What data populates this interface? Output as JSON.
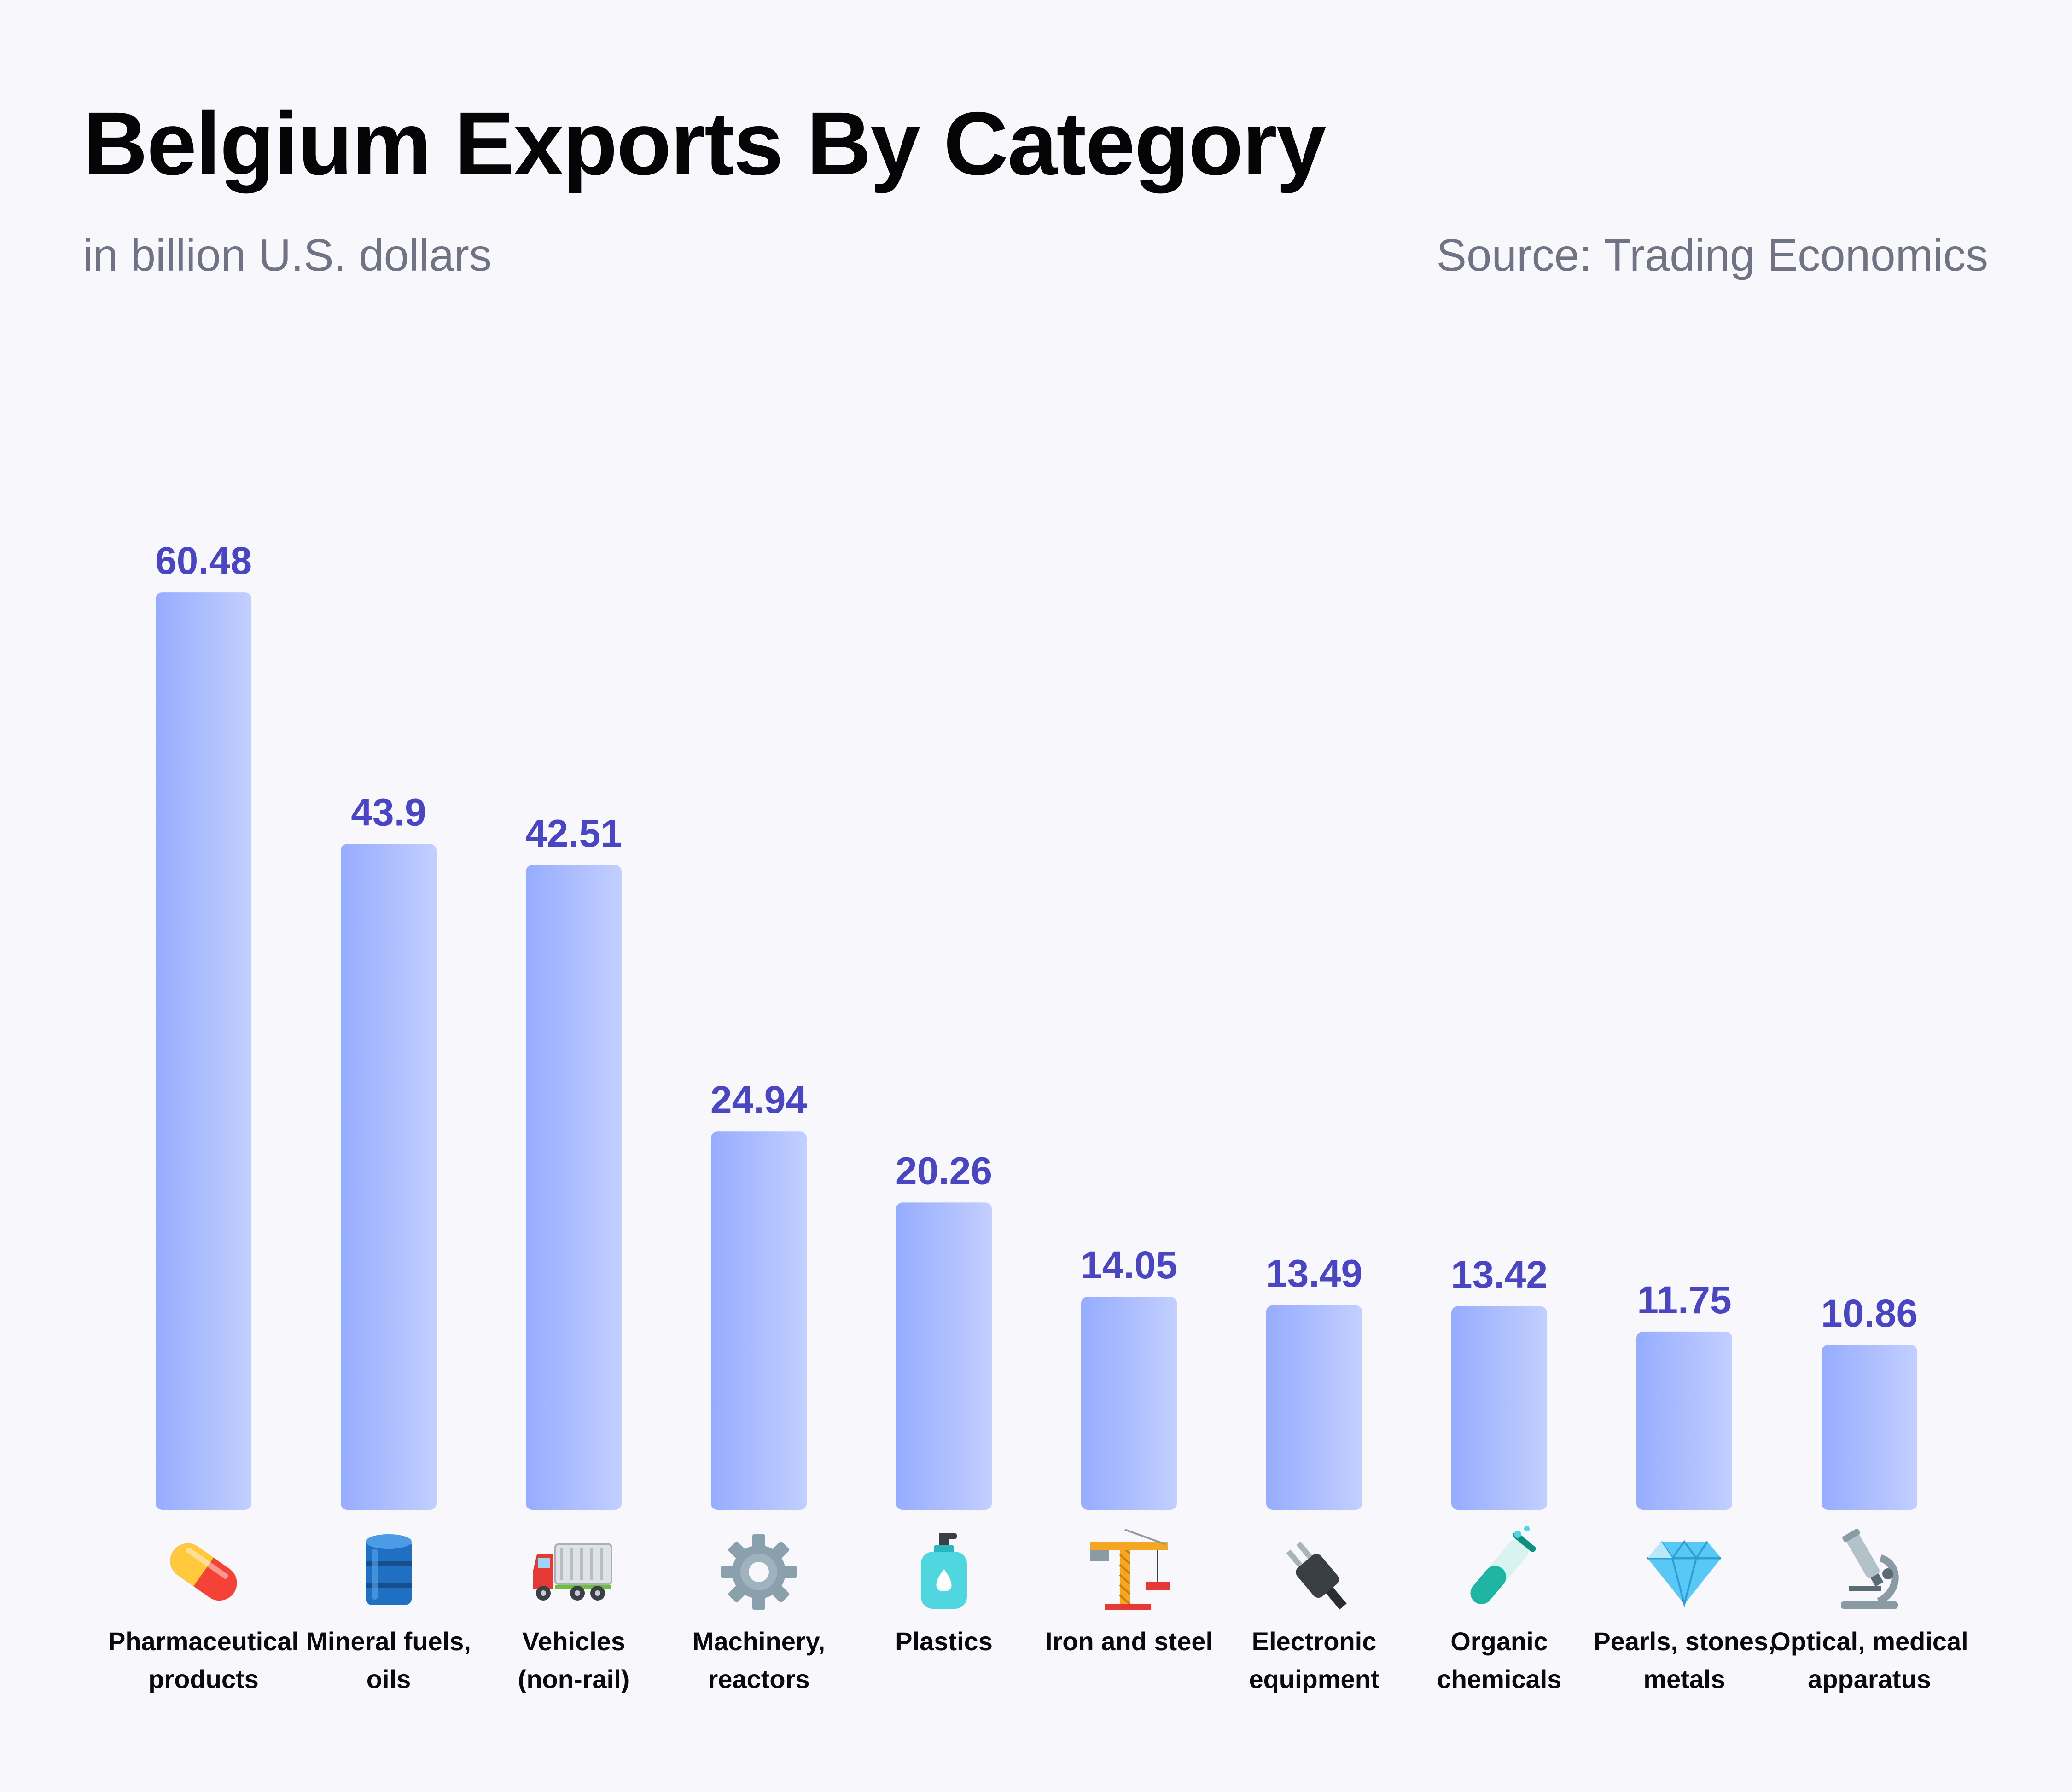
{
  "title": "Belgium Exports By Category",
  "subtitle": "in billion U.S. dollars",
  "source": "Source: Trading Economics",
  "colors": {
    "bar_start": "#96acff",
    "bar_end": "#c3cfff",
    "value_label": "#4a45c2",
    "background": "#f8f8fc"
  },
  "chart_data": {
    "type": "bar",
    "title": "Belgium Exports By Category",
    "ylabel": "",
    "xlabel": "",
    "grid": false,
    "categories": [
      {
        "label": [
          "Pharmaceutical",
          "products"
        ],
        "icon": "pill-icon"
      },
      {
        "label": [
          "Mineral fuels,",
          "oils"
        ],
        "icon": "oil-drum-icon"
      },
      {
        "label": [
          "Vehicles",
          "(non-rail)"
        ],
        "icon": "truck-icon"
      },
      {
        "label": [
          "Machinery,",
          "reactors"
        ],
        "icon": "gear-icon"
      },
      {
        "label": [
          "Plastics"
        ],
        "icon": "lotion-bottle-icon"
      },
      {
        "label": [
          "Iron and steel"
        ],
        "icon": "crane-icon"
      },
      {
        "label": [
          "Electronic",
          "equipment"
        ],
        "icon": "plug-icon"
      },
      {
        "label": [
          "Organic",
          "chemicals"
        ],
        "icon": "test-tube-icon"
      },
      {
        "label": [
          "Pearls, stones,",
          "metals"
        ],
        "icon": "gem-icon"
      },
      {
        "label": [
          "Optical, medical",
          "apparatus"
        ],
        "icon": "microscope-icon"
      }
    ],
    "values": [
      60.48,
      43.9,
      42.51,
      24.94,
      20.26,
      14.05,
      13.49,
      13.42,
      11.75,
      10.86
    ],
    "value_labels": [
      "60.48",
      "43.9",
      "42.51",
      "24.94",
      "20.26",
      "14.05",
      "13.49",
      "13.42",
      "11.75",
      "10.86"
    ]
  }
}
